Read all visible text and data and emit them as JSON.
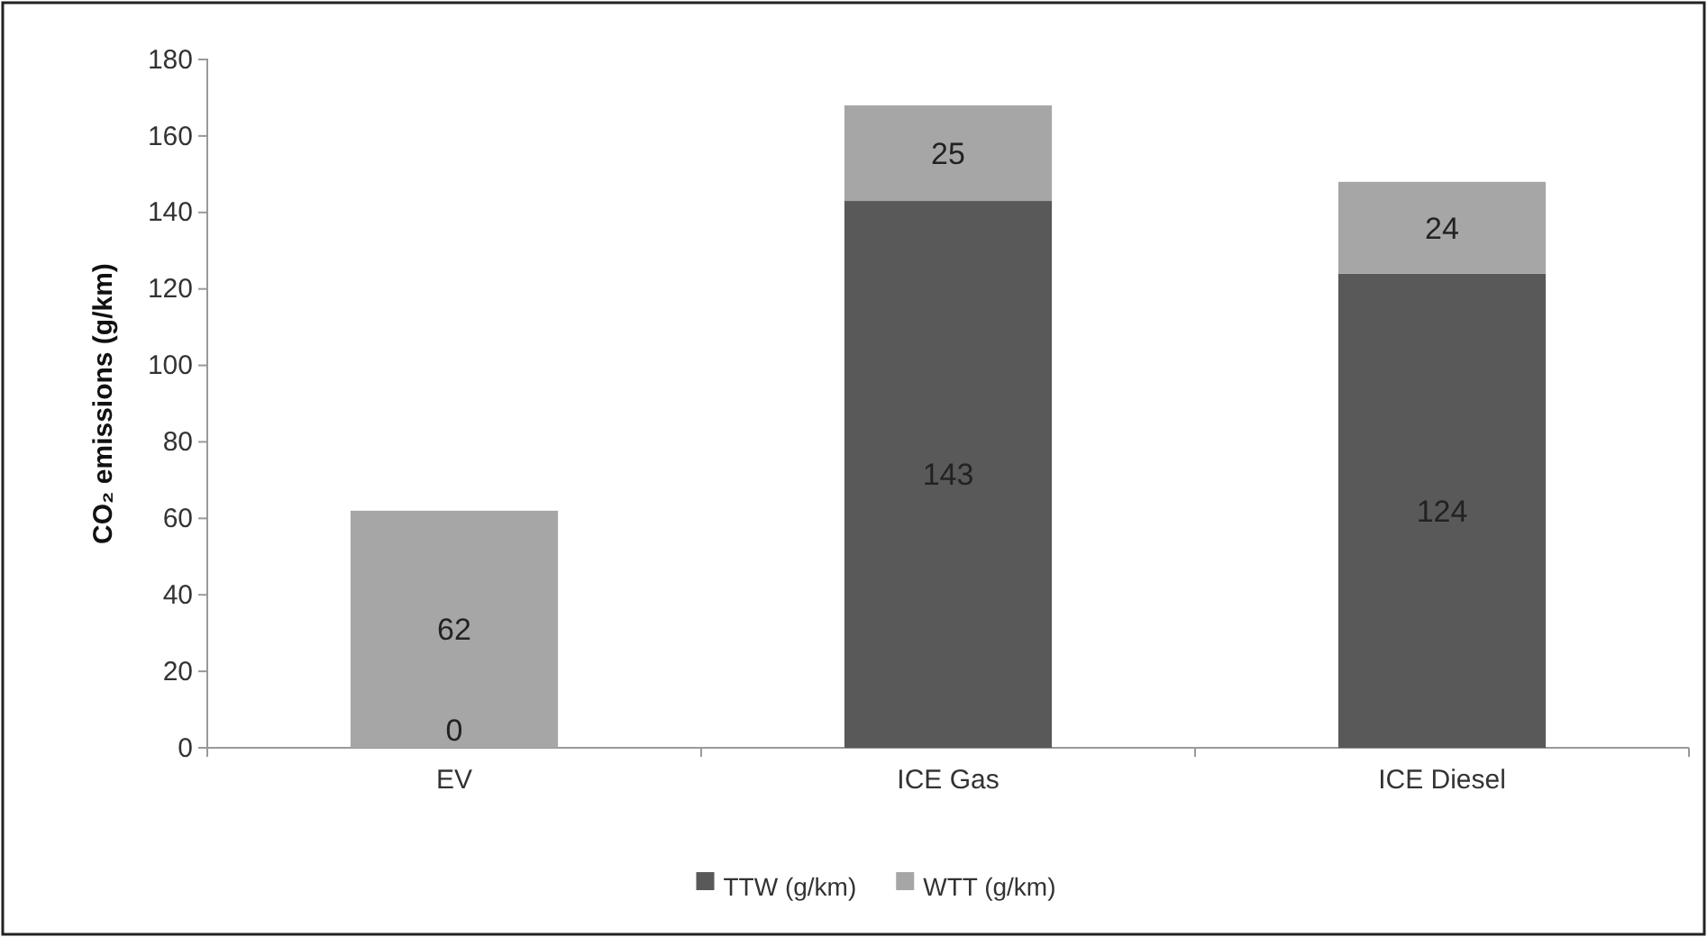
{
  "chart_data": {
    "type": "bar",
    "stacked": true,
    "categories": [
      "EV",
      "ICE Gas",
      "ICE Diesel"
    ],
    "series": [
      {
        "name": "TTW (g/km)",
        "color": "#595959",
        "values": [
          0,
          143,
          124
        ],
        "value_labels": [
          null,
          "143",
          "124"
        ]
      },
      {
        "name": "WTT (g/km)",
        "color": "#a6a6a6",
        "values": [
          62,
          25,
          24
        ],
        "value_labels": [
          "62",
          "25",
          "24"
        ]
      }
    ],
    "annotations": [
      {
        "text": "0",
        "x": "EV",
        "y": 0
      }
    ],
    "ylabel": "CO₂ emissions (g/km)",
    "ylim": [
      0,
      180
    ],
    "yticks": [
      0,
      20,
      40,
      60,
      80,
      100,
      120,
      140,
      160,
      180
    ],
    "grid": false,
    "legend": "bottom"
  }
}
